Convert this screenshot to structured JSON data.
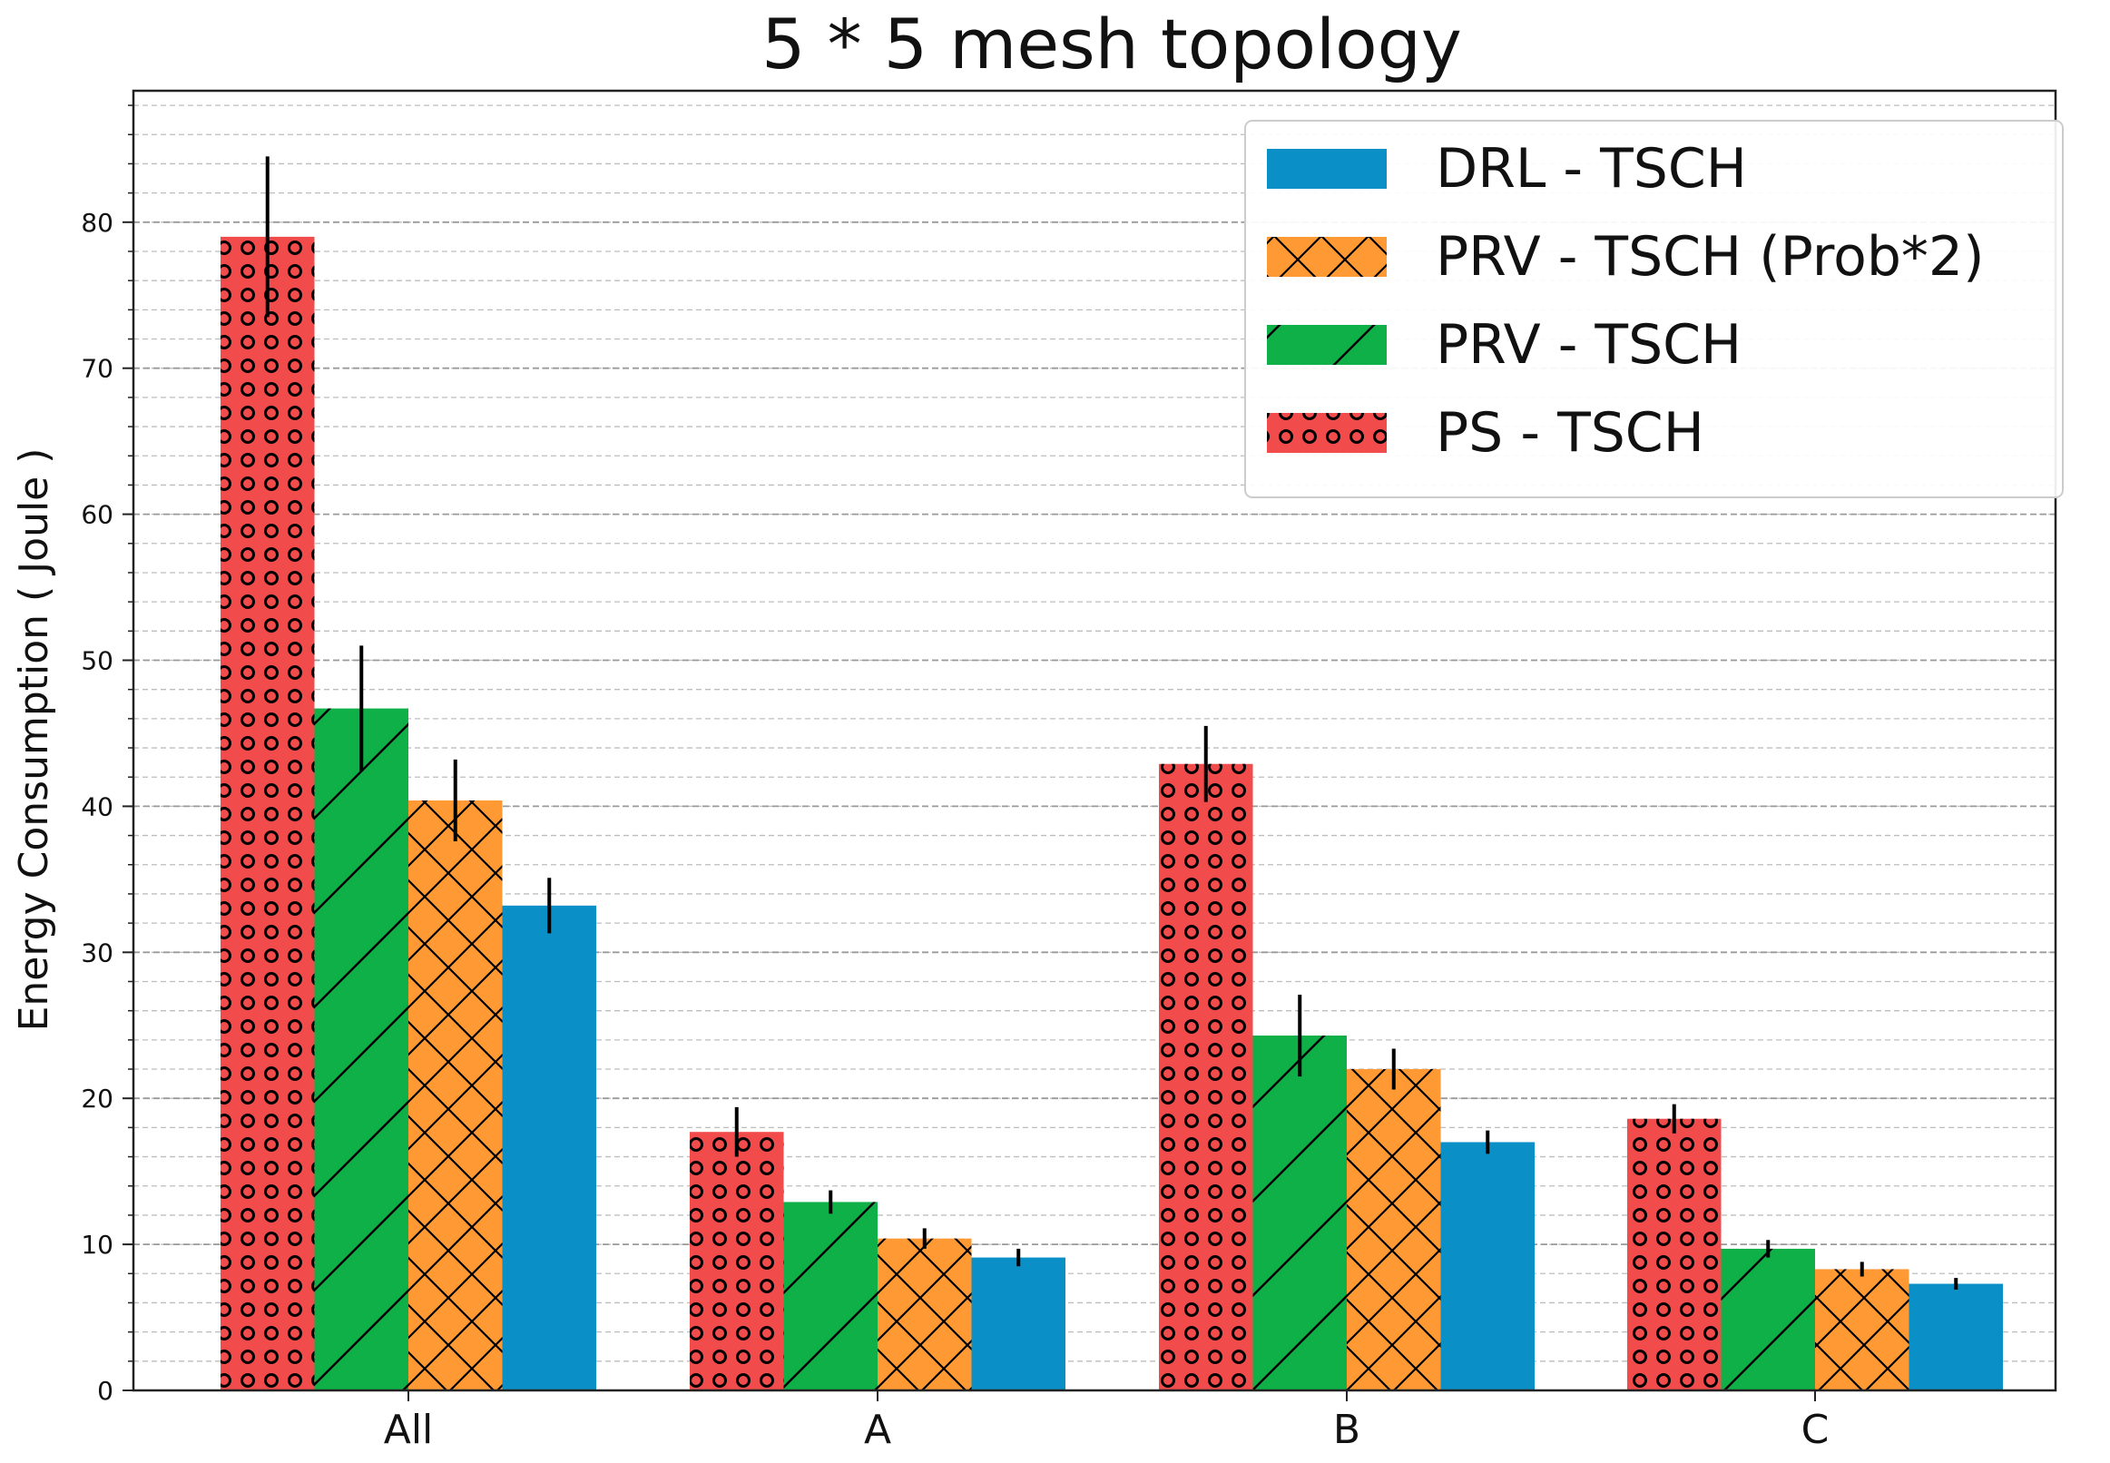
{
  "chart_data": {
    "type": "bar",
    "title": "5 * 5 mesh topology",
    "xlabel": "",
    "ylabel": "Energy Consumption ( Joule )",
    "ylim": [
      0,
      89
    ],
    "y_ticks": [
      0,
      10,
      20,
      30,
      40,
      50,
      60,
      70,
      80
    ],
    "grid": "horizontal dashed major and minor",
    "legend_position": "top-right",
    "categories": [
      "All",
      "A",
      "B",
      "C"
    ],
    "series": [
      {
        "name": "PS - TSCH",
        "color": "#f24b4b",
        "pattern": "circles",
        "values": [
          79,
          17.7,
          42.9,
          18.6
        ],
        "errors": [
          5.5,
          1.7,
          2.6,
          1.0
        ]
      },
      {
        "name": "PRV - TSCH",
        "color": "#10b048",
        "pattern": "diagonal",
        "values": [
          46.7,
          12.9,
          24.3,
          9.7
        ],
        "errors": [
          4.3,
          0.8,
          2.8,
          0.6
        ]
      },
      {
        "name": "PRV - TSCH (Prob*2)",
        "color": "#ff9933",
        "pattern": "crosshatch",
        "values": [
          40.4,
          10.4,
          22.0,
          8.3
        ],
        "errors": [
          2.8,
          0.7,
          1.4,
          0.5
        ]
      },
      {
        "name": "DRL - TSCH",
        "color": "#0a8fc7",
        "pattern": "solid",
        "values": [
          33.2,
          9.1,
          17.0,
          7.3
        ],
        "errors": [
          1.9,
          0.6,
          0.8,
          0.4
        ]
      }
    ],
    "legend_order": [
      "DRL - TSCH",
      "PRV - TSCH (Prob*2)",
      "PRV - TSCH",
      "PS - TSCH"
    ]
  }
}
